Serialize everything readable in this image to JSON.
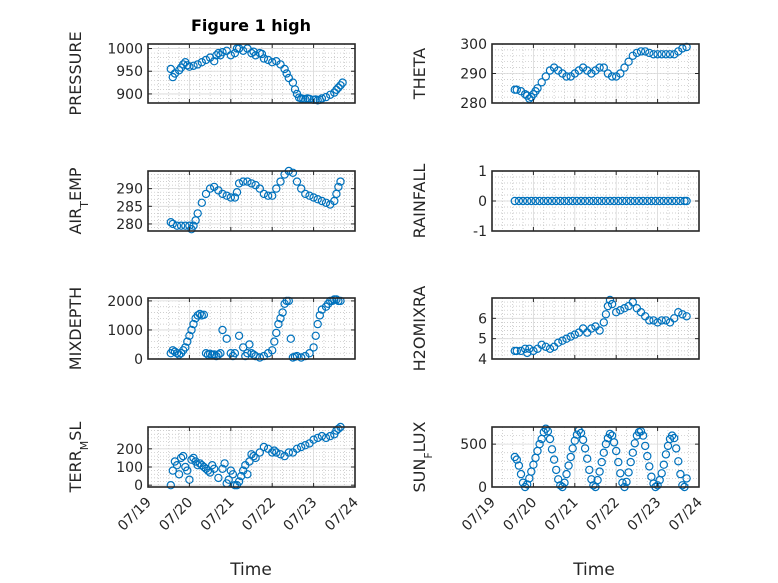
{
  "figure_title": "Figure 1 high",
  "xlabel": "Time",
  "x_tick_labels": [
    "07/19",
    "07/20",
    "07/21",
    "07/22",
    "07/23",
    "07/24"
  ],
  "colors": {
    "marker": "#0072BD",
    "axis": "#262626",
    "grid": "#bfbfbf",
    "background": "#ffffff"
  },
  "chart_data": [
    {
      "type": "scatter",
      "ylabel": "PRESSURE",
      "ylim": [
        880,
        1010
      ],
      "yticks": [
        900,
        950,
        1000
      ],
      "x": [
        0.55,
        0.6,
        0.65,
        0.75,
        0.8,
        0.85,
        0.9,
        0.95,
        1.0,
        1.1,
        1.2,
        1.3,
        1.4,
        1.5,
        1.6,
        1.65,
        1.7,
        1.75,
        1.8,
        1.9,
        2.0,
        2.1,
        2.15,
        2.2,
        2.3,
        2.4,
        2.5,
        2.55,
        2.6,
        2.7,
        2.75,
        2.8,
        2.9,
        3.0,
        3.1,
        3.2,
        3.3,
        3.35,
        3.4,
        3.5,
        3.55,
        3.6,
        3.65,
        3.7,
        3.75,
        3.8,
        3.85,
        3.9,
        4.0,
        4.05,
        4.1,
        4.15,
        4.2,
        4.3,
        4.4,
        4.5,
        4.55,
        4.6,
        4.65,
        4.7
      ],
      "y": [
        955,
        937,
        945,
        952,
        958,
        965,
        970,
        963,
        960,
        962,
        965,
        970,
        975,
        980,
        972,
        985,
        990,
        985,
        992,
        995,
        985,
        990,
        1000,
        1000,
        995,
        1000,
        990,
        993,
        985,
        990,
        988,
        978,
        975,
        970,
        972,
        965,
        955,
        945,
        935,
        925,
        910,
        900,
        892,
        890,
        889,
        888,
        890,
        889,
        887,
        888,
        886,
        887,
        890,
        893,
        898,
        903,
        909,
        914,
        919,
        925
      ]
    },
    {
      "type": "scatter",
      "ylabel": "THETA",
      "ylim": [
        280,
        300
      ],
      "yticks": [
        280,
        290,
        300
      ],
      "x": [
        0.55,
        0.6,
        0.7,
        0.8,
        0.85,
        0.9,
        0.95,
        1.0,
        1.05,
        1.1,
        1.2,
        1.3,
        1.4,
        1.5,
        1.6,
        1.7,
        1.8,
        1.9,
        2.0,
        2.1,
        2.2,
        2.3,
        2.4,
        2.5,
        2.6,
        2.7,
        2.8,
        2.9,
        3.0,
        3.1,
        3.2,
        3.3,
        3.4,
        3.5,
        3.6,
        3.7,
        3.8,
        3.9,
        4.0,
        4.1,
        4.2,
        4.3,
        4.4,
        4.5,
        4.6,
        4.7
      ],
      "y": [
        284.5,
        284.5,
        284,
        283,
        282.5,
        281.5,
        282,
        283,
        284,
        285,
        287,
        289,
        291,
        292,
        291,
        290,
        289,
        289,
        290,
        291,
        292,
        291,
        290,
        291,
        292,
        292,
        290,
        289,
        289,
        290,
        292,
        294,
        296,
        297,
        297.5,
        297.5,
        297,
        296.5,
        296.5,
        296.5,
        296.5,
        296.5,
        296.5,
        297.5,
        298.5,
        299
      ]
    },
    {
      "type": "scatter",
      "ylabel": "AIR_TEMP",
      "ylim": [
        278,
        295
      ],
      "yticks": [
        280,
        285,
        290
      ],
      "x": [
        0.55,
        0.6,
        0.7,
        0.8,
        0.9,
        1.0,
        1.05,
        1.1,
        1.15,
        1.2,
        1.3,
        1.4,
        1.5,
        1.6,
        1.7,
        1.8,
        1.9,
        2.0,
        2.1,
        2.15,
        2.2,
        2.3,
        2.4,
        2.5,
        2.6,
        2.7,
        2.8,
        2.9,
        3.0,
        3.1,
        3.2,
        3.3,
        3.4,
        3.5,
        3.6,
        3.7,
        3.8,
        3.9,
        4.0,
        4.1,
        4.2,
        4.3,
        4.4,
        4.5,
        4.55,
        4.6,
        4.65
      ],
      "y": [
        280.5,
        280,
        279.5,
        279.5,
        279.5,
        279.5,
        278.5,
        279.5,
        281,
        283,
        286,
        288.5,
        290,
        290.5,
        289.5,
        288.5,
        288,
        287.5,
        287.5,
        289,
        291.5,
        292,
        292,
        291.5,
        291,
        290,
        288.5,
        288,
        288,
        290,
        292,
        294,
        295,
        294.5,
        292,
        290,
        288.5,
        288,
        287.5,
        287,
        286.5,
        286,
        285.5,
        286.5,
        288.5,
        290.5,
        292
      ]
    },
    {
      "type": "scatter",
      "ylabel": "RAINFALL",
      "ylim": [
        -1,
        1
      ],
      "yticks": [
        -1,
        0,
        1
      ],
      "x": [
        0.55,
        0.65,
        0.75,
        0.85,
        0.95,
        1.05,
        1.15,
        1.25,
        1.35,
        1.45,
        1.55,
        1.65,
        1.75,
        1.85,
        1.95,
        2.05,
        2.15,
        2.25,
        2.35,
        2.45,
        2.55,
        2.65,
        2.75,
        2.85,
        2.95,
        3.05,
        3.15,
        3.25,
        3.35,
        3.45,
        3.55,
        3.65,
        3.75,
        3.85,
        3.95,
        4.05,
        4.15,
        4.25,
        4.35,
        4.45,
        4.55,
        4.65,
        4.7
      ],
      "y": [
        0,
        0,
        0,
        0,
        0,
        0,
        0,
        0,
        0,
        0,
        0,
        0,
        0,
        0,
        0,
        0,
        0,
        0,
        0,
        0,
        0,
        0,
        0,
        0,
        0,
        0,
        0,
        0,
        0,
        0,
        0,
        0,
        0,
        0,
        0,
        0,
        0,
        0,
        0,
        0,
        0,
        0,
        0
      ]
    },
    {
      "type": "scatter",
      "ylabel": "MIXDEPTH",
      "ylim": [
        0,
        2100
      ],
      "yticks": [
        0,
        1000,
        2000
      ],
      "x": [
        0.55,
        0.6,
        0.65,
        0.7,
        0.75,
        0.8,
        0.85,
        0.9,
        0.95,
        1.0,
        1.05,
        1.1,
        1.15,
        1.2,
        1.25,
        1.3,
        1.35,
        1.4,
        1.45,
        1.5,
        1.55,
        1.6,
        1.65,
        1.7,
        1.75,
        1.8,
        1.9,
        2.0,
        2.05,
        2.1,
        2.2,
        2.3,
        2.35,
        2.4,
        2.45,
        2.5,
        2.55,
        2.6,
        2.7,
        2.8,
        2.9,
        3.0,
        3.05,
        3.1,
        3.15,
        3.2,
        3.25,
        3.3,
        3.35,
        3.4,
        3.45,
        3.5,
        3.55,
        3.6,
        3.7,
        3.8,
        3.9,
        4.0,
        4.05,
        4.1,
        4.15,
        4.2,
        4.3,
        4.35,
        4.4,
        4.45,
        4.5,
        4.55,
        4.6,
        4.65
      ],
      "y": [
        200,
        300,
        250,
        200,
        150,
        200,
        300,
        400,
        600,
        800,
        1000,
        1200,
        1400,
        1500,
        1550,
        1500,
        1520,
        200,
        150,
        180,
        150,
        160,
        100,
        150,
        200,
        1000,
        700,
        200,
        100,
        200,
        800,
        400,
        100,
        200,
        500,
        200,
        150,
        100,
        50,
        100,
        200,
        300,
        600,
        900,
        1200,
        1400,
        1600,
        1900,
        2000,
        2000,
        700,
        50,
        80,
        100,
        50,
        100,
        200,
        400,
        800,
        1200,
        1500,
        1700,
        1800,
        1900,
        2000,
        2000,
        2050,
        2050,
        2000,
        2000
      ]
    },
    {
      "type": "scatter",
      "ylabel": "H2OMIXRA",
      "ylim": [
        4,
        7
      ],
      "yticks": [
        4,
        5,
        6
      ],
      "x": [
        0.55,
        0.6,
        0.7,
        0.8,
        0.85,
        0.9,
        1.0,
        1.1,
        1.2,
        1.3,
        1.4,
        1.5,
        1.6,
        1.7,
        1.8,
        1.9,
        2.0,
        2.1,
        2.2,
        2.3,
        2.4,
        2.5,
        2.6,
        2.7,
        2.75,
        2.8,
        2.85,
        2.9,
        3.0,
        3.1,
        3.2,
        3.3,
        3.4,
        3.5,
        3.6,
        3.7,
        3.8,
        3.9,
        4.0,
        4.1,
        4.2,
        4.3,
        4.4,
        4.5,
        4.6,
        4.7
      ],
      "y": [
        4.4,
        4.4,
        4.4,
        4.5,
        4.3,
        4.5,
        4.4,
        4.5,
        4.7,
        4.6,
        4.5,
        4.6,
        4.8,
        4.9,
        5.0,
        5.1,
        5.2,
        5.3,
        5.5,
        5.3,
        5.5,
        5.6,
        5.4,
        5.8,
        6.2,
        6.6,
        6.9,
        6.7,
        6.3,
        6.4,
        6.5,
        6.6,
        6.8,
        6.5,
        6.3,
        6.1,
        5.9,
        5.9,
        5.8,
        5.9,
        5.9,
        5.8,
        6.0,
        6.3,
        6.2,
        6.1
      ]
    },
    {
      "type": "scatter",
      "ylabel": "TERR_MSL",
      "ylim": [
        -10,
        320
      ],
      "yticks": [
        0,
        100,
        200
      ],
      "x": [
        0.55,
        0.6,
        0.65,
        0.7,
        0.75,
        0.8,
        0.85,
        0.9,
        0.95,
        1.0,
        1.05,
        1.1,
        1.15,
        1.2,
        1.25,
        1.3,
        1.35,
        1.4,
        1.45,
        1.5,
        1.55,
        1.6,
        1.7,
        1.8,
        1.85,
        1.9,
        1.95,
        2.0,
        2.05,
        2.1,
        2.15,
        2.2,
        2.25,
        2.3,
        2.35,
        2.4,
        2.45,
        2.5,
        2.55,
        2.6,
        2.7,
        2.8,
        2.9,
        3.0,
        3.05,
        3.1,
        3.2,
        3.3,
        3.4,
        3.5,
        3.6,
        3.7,
        3.8,
        3.9,
        4.0,
        4.1,
        4.2,
        4.3,
        4.4,
        4.5,
        4.55,
        4.6,
        4.65
      ],
      "y": [
        0,
        80,
        130,
        110,
        60,
        150,
        160,
        100,
        80,
        30,
        140,
        150,
        130,
        110,
        120,
        110,
        100,
        90,
        80,
        70,
        110,
        90,
        40,
        90,
        120,
        10,
        30,
        80,
        60,
        0,
        0,
        20,
        50,
        80,
        110,
        60,
        130,
        170,
        160,
        150,
        180,
        210,
        200,
        180,
        190,
        180,
        170,
        160,
        180,
        180,
        200,
        210,
        220,
        230,
        250,
        260,
        270,
        260,
        270,
        280,
        300,
        310,
        320
      ]
    },
    {
      "type": "scatter",
      "ylabel": "SUN_FLUX",
      "ylim": [
        0,
        700
      ],
      "yticks": [
        0,
        500
      ],
      "x": [
        0.55,
        0.6,
        0.65,
        0.7,
        0.75,
        0.8,
        0.85,
        0.9,
        0.95,
        1.0,
        1.05,
        1.1,
        1.15,
        1.2,
        1.25,
        1.3,
        1.35,
        1.4,
        1.45,
        1.5,
        1.55,
        1.6,
        1.65,
        1.7,
        1.75,
        1.8,
        1.85,
        1.9,
        1.95,
        2.0,
        2.05,
        2.1,
        2.15,
        2.2,
        2.25,
        2.3,
        2.35,
        2.4,
        2.45,
        2.5,
        2.55,
        2.6,
        2.65,
        2.7,
        2.75,
        2.8,
        2.85,
        2.9,
        2.95,
        3.0,
        3.05,
        3.1,
        3.15,
        3.2,
        3.25,
        3.3,
        3.35,
        3.4,
        3.45,
        3.5,
        3.55,
        3.6,
        3.65,
        3.7,
        3.75,
        3.8,
        3.85,
        3.9,
        3.95,
        4.0,
        4.05,
        4.1,
        4.15,
        4.2,
        4.25,
        4.3,
        4.35,
        4.4,
        4.45,
        4.5,
        4.55,
        4.6,
        4.65,
        4.7
      ],
      "y": [
        350,
        320,
        250,
        150,
        50,
        0,
        30,
        100,
        180,
        260,
        340,
        420,
        500,
        560,
        640,
        680,
        650,
        560,
        440,
        320,
        200,
        90,
        20,
        0,
        50,
        150,
        250,
        350,
        450,
        540,
        610,
        660,
        630,
        550,
        450,
        330,
        200,
        90,
        20,
        0,
        80,
        180,
        290,
        400,
        500,
        570,
        620,
        600,
        520,
        420,
        290,
        160,
        50,
        0,
        60,
        170,
        290,
        400,
        510,
        600,
        640,
        650,
        600,
        480,
        360,
        240,
        120,
        40,
        0,
        20,
        80,
        160,
        260,
        380,
        480,
        560,
        600,
        570,
        450,
        300,
        150,
        20,
        0,
        100
      ]
    }
  ]
}
